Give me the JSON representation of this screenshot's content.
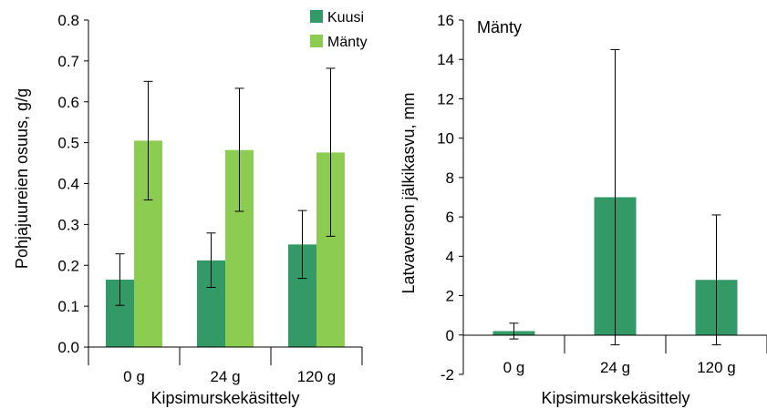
{
  "chart_data": [
    {
      "type": "bar",
      "categories": [
        "0 g",
        "24 g",
        "120 g"
      ],
      "series": [
        {
          "name": "Kuusi",
          "color": "#339966",
          "values": [
            0.165,
            0.212,
            0.251
          ],
          "err_low": [
            0.102,
            0.146,
            0.168
          ],
          "err_high": [
            0.228,
            0.279,
            0.334
          ]
        },
        {
          "name": "Mänty",
          "color": "#8ccc50",
          "values": [
            0.505,
            0.482,
            0.476
          ],
          "err_low": [
            0.36,
            0.332,
            0.271
          ],
          "err_high": [
            0.65,
            0.633,
            0.682
          ]
        }
      ],
      "xlabel": "Kipsimurskekäsittely",
      "ylabel": "Pohjajuureien osuus, g/g",
      "ylim": [
        0,
        0.8
      ],
      "yticks": [
        "0.0",
        "0.1",
        "0.2",
        "0.3",
        "0.4",
        "0.5",
        "0.6",
        "0.7",
        "0.8"
      ],
      "legend": "top-right"
    },
    {
      "type": "bar",
      "categories": [
        "0 g",
        "24 g",
        "120 g"
      ],
      "series": [
        {
          "color": "#339966",
          "values": [
            0.2,
            7.0,
            2.8
          ],
          "err_low": [
            -0.2,
            -0.5,
            -0.5
          ],
          "err_high": [
            0.6,
            14.5,
            6.1
          ]
        }
      ],
      "annotation": "Mänty",
      "xlabel": "Kipsimurskekäsittely",
      "ylabel": "Latvaverson jälkikasvu, mm",
      "ylim": [
        -2,
        16
      ],
      "yticks": [
        "-2",
        "0",
        "2",
        "4",
        "6",
        "8",
        "10",
        "12",
        "14",
        "16"
      ]
    }
  ]
}
